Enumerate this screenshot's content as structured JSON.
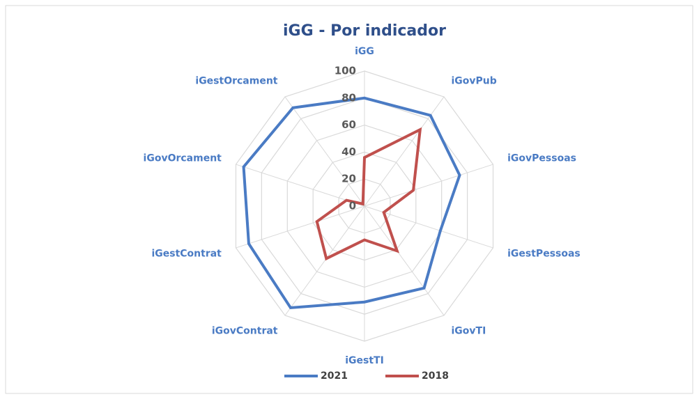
{
  "chart_data": {
    "type": "radar",
    "title": "iGG - Por indicador",
    "categories": [
      "iGG",
      "iGovPub",
      "iGovPessoas",
      "iGestPessoas",
      "iGovTI",
      "iGestTI",
      "iGovContrat",
      "iGestContrat",
      "iGovOrcament",
      "iGestOrcament"
    ],
    "series": [
      {
        "name": "2021",
        "color": "#4a7bc4",
        "values": [
          80,
          83,
          74,
          59,
          75,
          71,
          93,
          90,
          94,
          90
        ]
      },
      {
        "name": "2018",
        "color": "#c0504d",
        "values": [
          36,
          70,
          38,
          15,
          41,
          25,
          48,
          37,
          14,
          2
        ]
      }
    ],
    "ylim": [
      0,
      100
    ],
    "yticks": [
      0,
      20,
      40,
      60,
      80,
      100
    ],
    "grid": true,
    "legend": "bottom"
  }
}
